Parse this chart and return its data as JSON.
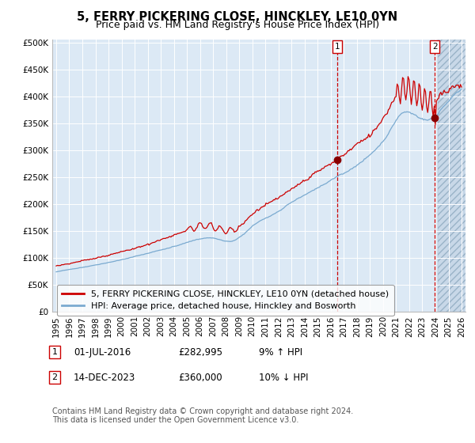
{
  "title": "5, FERRY PICKERING CLOSE, HINCKLEY, LE10 0YN",
  "subtitle": "Price paid vs. HM Land Registry's House Price Index (HPI)",
  "ylim": [
    0,
    500000
  ],
  "yticks": [
    0,
    50000,
    100000,
    150000,
    200000,
    250000,
    300000,
    350000,
    400000,
    450000,
    500000
  ],
  "ytick_labels": [
    "£0",
    "£50K",
    "£100K",
    "£150K",
    "£200K",
    "£250K",
    "£300K",
    "£350K",
    "£400K",
    "£450K",
    "£500K"
  ],
  "x_start_year": 1995,
  "x_end_year": 2026,
  "xtick_years": [
    1995,
    1996,
    1997,
    1998,
    1999,
    2000,
    2001,
    2002,
    2003,
    2004,
    2005,
    2006,
    2007,
    2008,
    2009,
    2010,
    2011,
    2012,
    2013,
    2014,
    2015,
    2016,
    2017,
    2018,
    2019,
    2020,
    2021,
    2022,
    2023,
    2024,
    2025,
    2026
  ],
  "plot_bg_color": "#dce9f5",
  "hatch_bg_color": "#c8d8e8",
  "grid_color": "#ffffff",
  "line1_color": "#cc0000",
  "line2_color": "#7aaad0",
  "marker_color": "#880000",
  "vline_color": "#cc0000",
  "transaction1_x": 2016.5,
  "transaction1_y": 282995,
  "transaction1_label": "01-JUL-2016",
  "transaction1_price": "£282,995",
  "transaction1_hpi": "9% ↑ HPI",
  "transaction1_num": "1",
  "transaction2_x": 2023.95,
  "transaction2_y": 360000,
  "transaction2_label": "14-DEC-2023",
  "transaction2_price": "£360,000",
  "transaction2_hpi": "10% ↓ HPI",
  "transaction2_num": "2",
  "legend1_label": "5, FERRY PICKERING CLOSE, HINCKLEY, LE10 0YN (detached house)",
  "legend2_label": "HPI: Average price, detached house, Hinckley and Bosworth",
  "footer1": "Contains HM Land Registry data © Crown copyright and database right 2024.",
  "footer2": "This data is licensed under the Open Government Licence v3.0.",
  "title_fontsize": 10.5,
  "subtitle_fontsize": 9,
  "tick_fontsize": 7.5,
  "legend_fontsize": 8,
  "footer_fontsize": 7,
  "annotation_fontsize": 8.5
}
